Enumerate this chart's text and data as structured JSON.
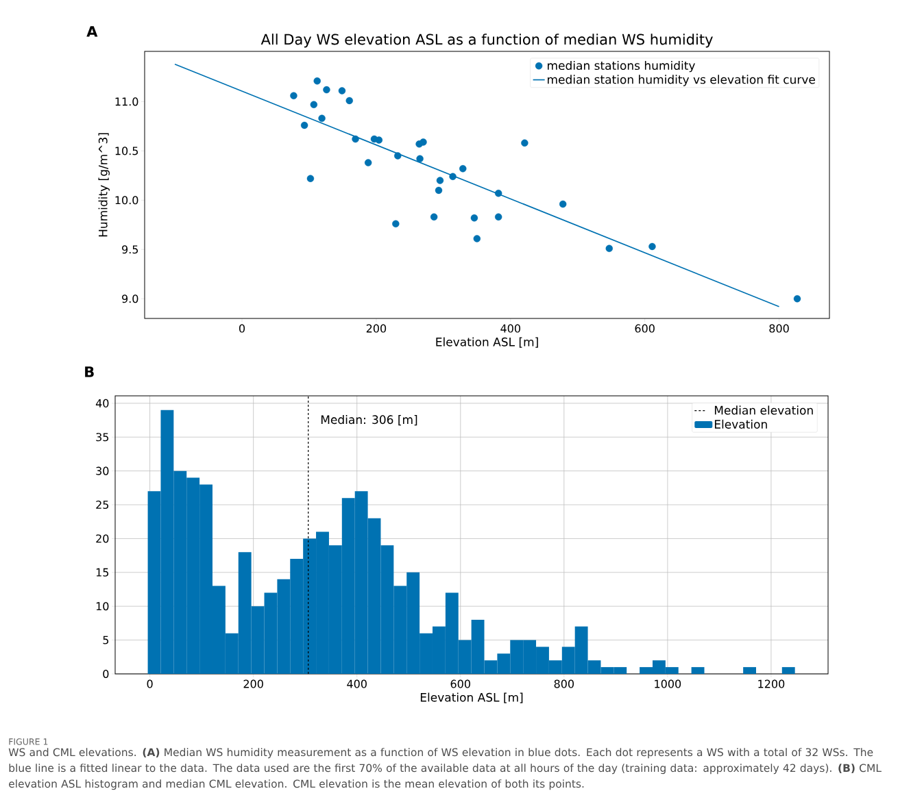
{
  "chart_data": [
    {
      "type": "scatter",
      "title": "All Day WS elevation ASL as a function of median WS humidity",
      "xlabel": "Elevation ASL [m]",
      "ylabel": "Humidity [g/m^3]",
      "annotations": [
        "A"
      ],
      "series": [
        {
          "type": "scatter",
          "name": "median stations humidity",
          "color": "#0072b2",
          "marker": "circle",
          "x": [
            77,
            112,
            126,
            149,
            160,
            107,
            119,
            93,
            169,
            197,
            204,
            188,
            102,
            232,
            264,
            270,
            265,
            329,
            314,
            295,
            293,
            229,
            286,
            346,
            350,
            382,
            382,
            421,
            478,
            547,
            611,
            827
          ],
          "values": [
            11.06,
            11.21,
            11.12,
            11.11,
            11.01,
            10.97,
            10.83,
            10.76,
            10.62,
            10.62,
            10.61,
            10.38,
            10.22,
            10.45,
            10.57,
            10.59,
            10.42,
            10.32,
            10.24,
            10.2,
            10.1,
            9.76,
            9.83,
            9.82,
            9.61,
            10.07,
            9.83,
            10.58,
            9.96,
            9.51,
            9.53,
            9.0
          ]
        },
        {
          "type": "line",
          "name": "median station humidity vs elevation fit curve",
          "color": "#0072b2",
          "line_style": "solid",
          "x": [
            -100,
            800
          ],
          "values": [
            11.38,
            8.92
          ]
        }
      ],
      "xlim": [
        -145,
        875
      ],
      "ylim": [
        8.8,
        11.51
      ],
      "xticks": [
        0,
        200,
        400,
        600,
        800
      ],
      "yticks": [
        {
          "value": 9,
          "label": "9.0"
        },
        {
          "value": 9.5,
          "label": "9.5"
        },
        {
          "value": 10,
          "label": "10.0"
        },
        {
          "value": 10.5,
          "label": "10.5"
        },
        {
          "value": 11,
          "label": "11.0"
        }
      ],
      "grid": false,
      "legend": "top right"
    },
    {
      "type": "histogram",
      "xlabel": "Elevation ASL [m]",
      "annotations": [
        "B",
        {
          "text": "Median: 306 [m]",
          "x": 306,
          "y": 37.5
        },
        "FIGURE 1",
        "WS and CML elevations. **(A)** Median WS humidity measurement as a function of WS elevation in blue dots. Each dot represents a WS with a total of 32 WSs. The blue line is a fitted linear to the data. The data used are the first 70% of the available data at all hours of the day (training data: approximately 42 days). **(B)** CML elevation ASL histogram and median CML elevation. CML elevation is the mean elevation of both its points."
      ],
      "bins": [
        -4,
        21,
        46,
        71,
        96,
        121,
        146,
        171,
        196,
        221,
        246,
        271,
        296,
        321,
        346,
        371,
        396,
        421,
        446,
        471,
        496,
        521,
        546,
        571,
        596,
        621,
        646,
        671,
        696,
        721,
        746,
        771,
        796,
        821,
        846,
        871,
        896,
        921,
        946,
        971,
        996,
        1021,
        1046,
        1071,
        1096,
        1121,
        1146,
        1171,
        1196,
        1221,
        1246
      ],
      "series": [
        {
          "name": "Elevation",
          "color": "#0072b2",
          "values": [
            27,
            39,
            30,
            29,
            28,
            13,
            6,
            18,
            10,
            12,
            14,
            17,
            20,
            21,
            19,
            26,
            27,
            23,
            19,
            13,
            15,
            6,
            7,
            12,
            5,
            8,
            2,
            3,
            5,
            5,
            4,
            2,
            4,
            7,
            2,
            1,
            1,
            0,
            1,
            2,
            1,
            0,
            1,
            0,
            0,
            0,
            1,
            0,
            0,
            1
          ]
        }
      ],
      "ref_lines": [
        {
          "axis": "x",
          "value": 306,
          "label": "Median elevation",
          "color": "#000000",
          "line_style": "dashed"
        }
      ],
      "xlim": [
        -67,
        1310
      ],
      "ylim": [
        0,
        41.1
      ],
      "xticks": [
        0,
        200,
        400,
        600,
        800,
        1000,
        1200
      ],
      "yticks": [
        0,
        5,
        10,
        15,
        20,
        25,
        30,
        35,
        40
      ],
      "grid": true,
      "legend": "top right"
    }
  ]
}
